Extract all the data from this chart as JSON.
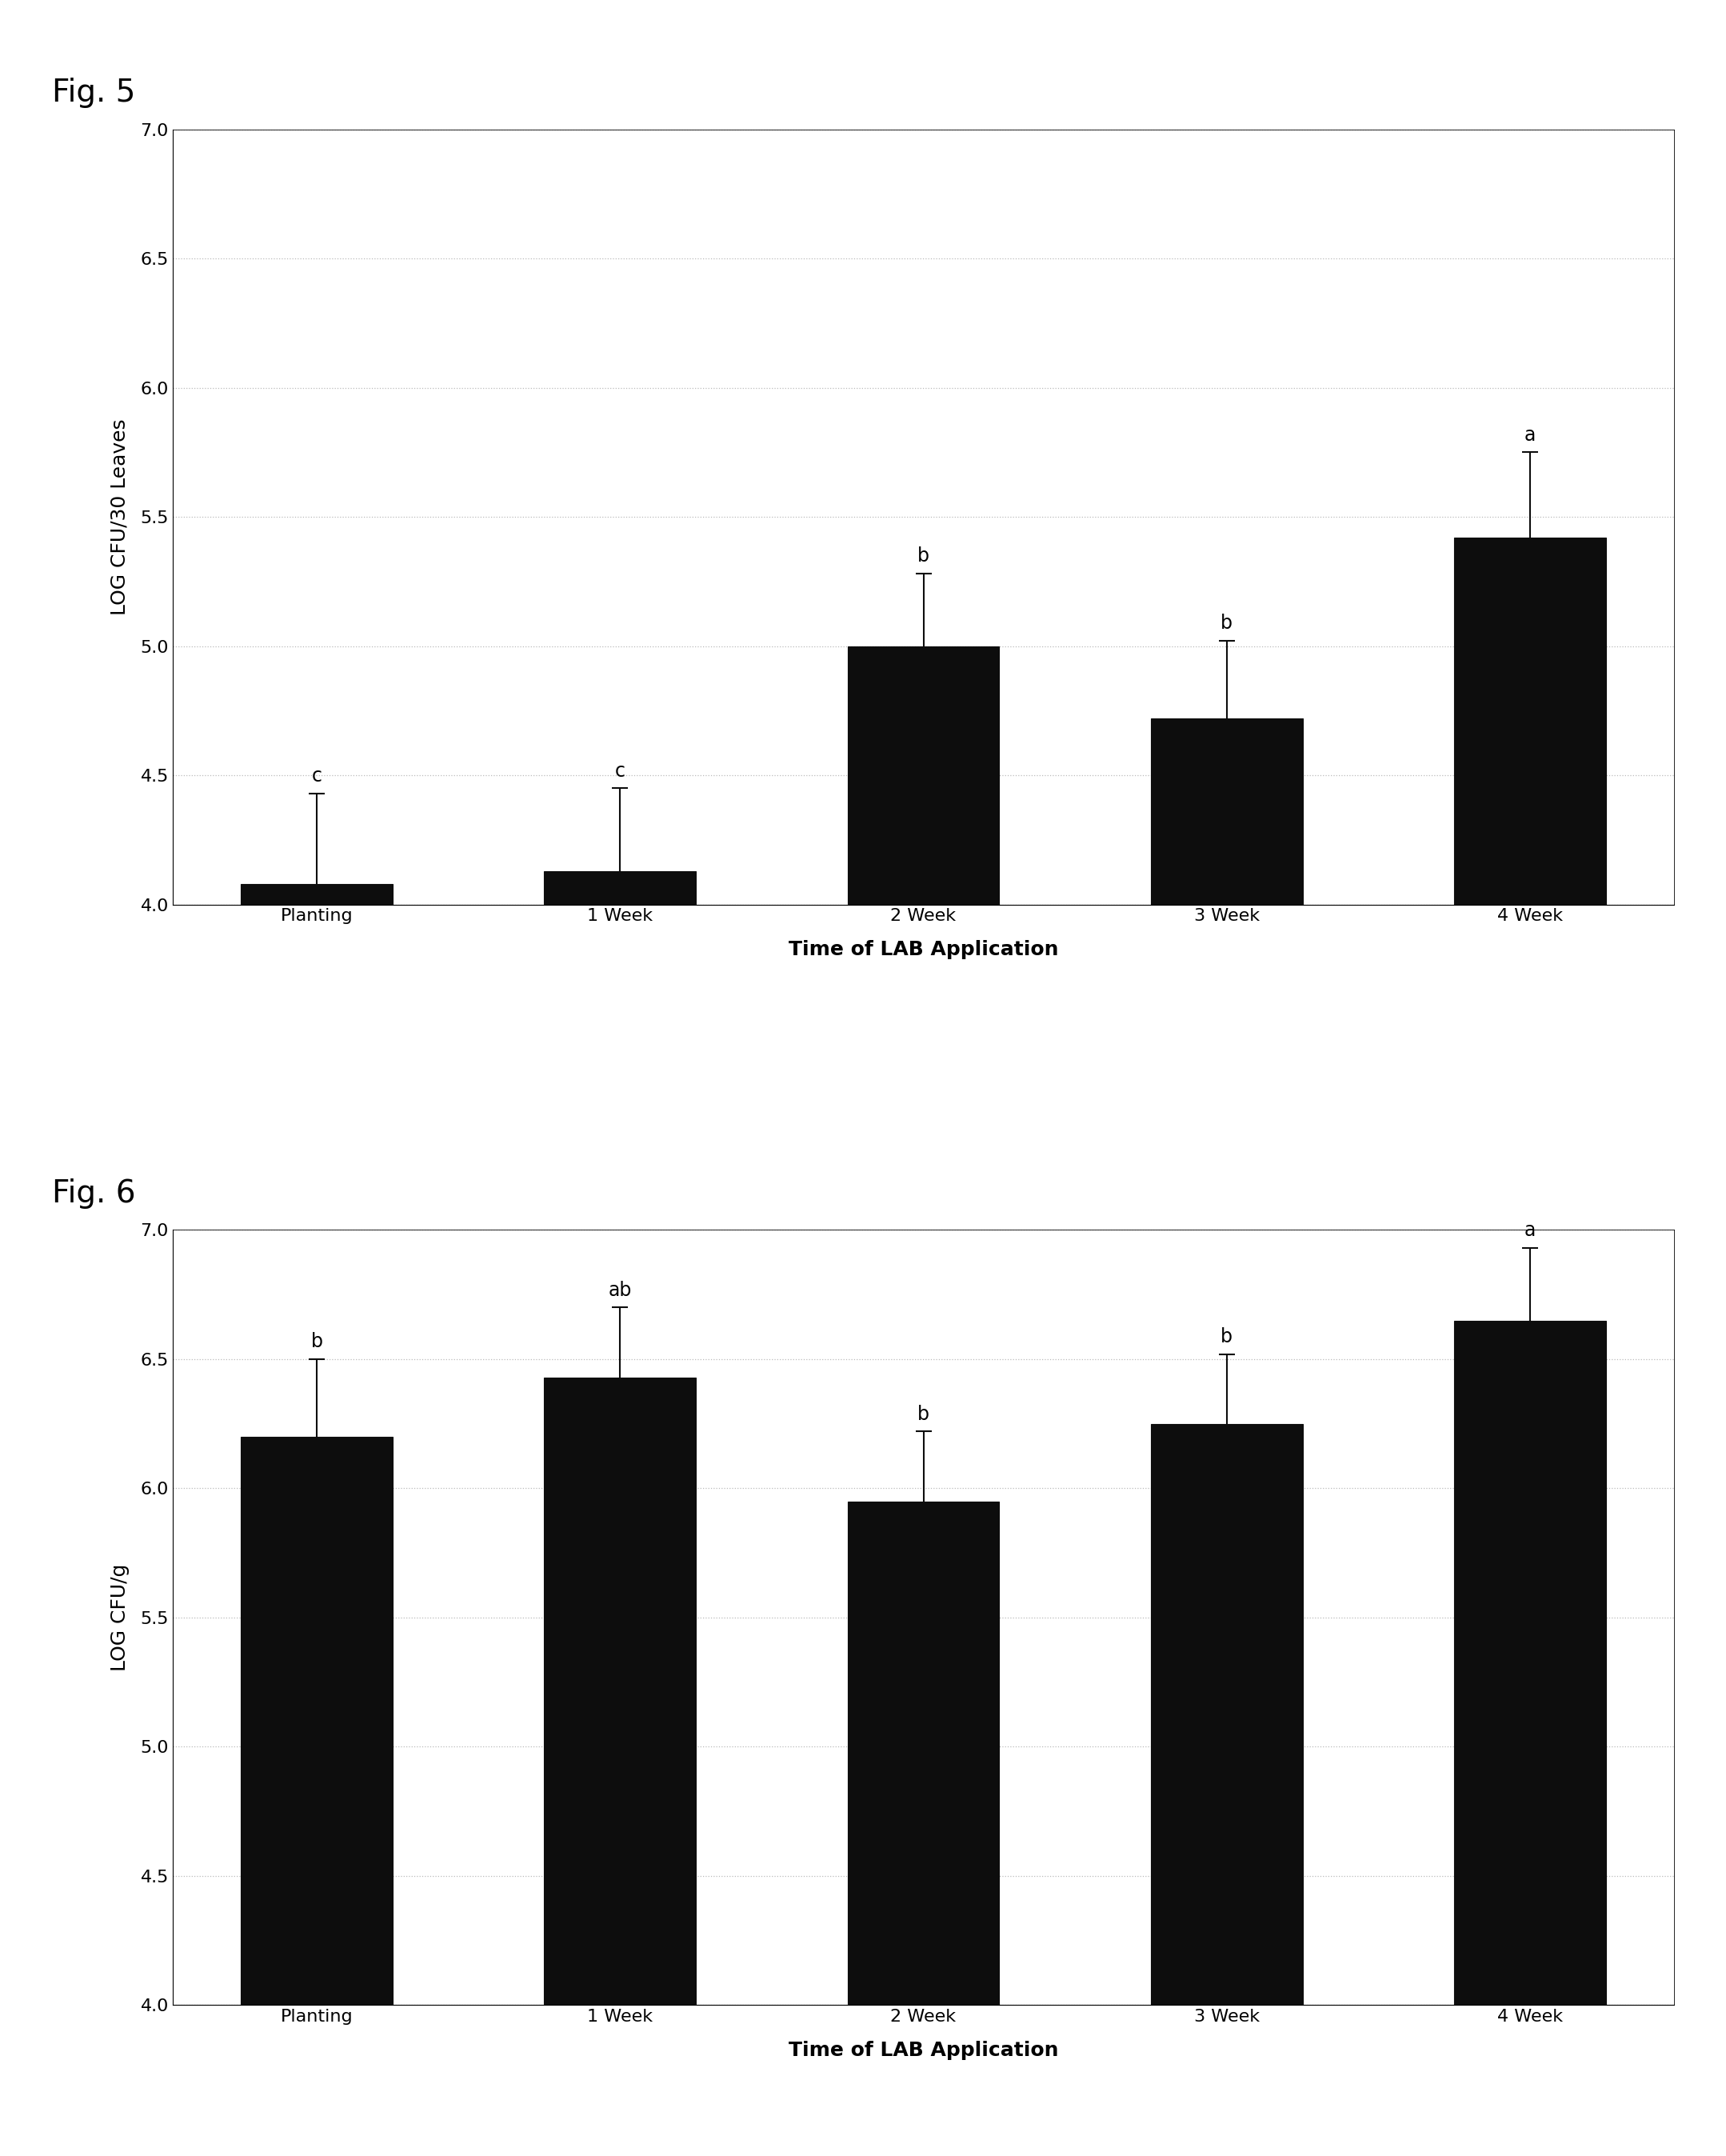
{
  "fig5": {
    "title": "Fig. 5",
    "categories": [
      "Planting",
      "1 Week",
      "2 Week",
      "3 Week",
      "4 Week"
    ],
    "values": [
      4.08,
      4.13,
      5.0,
      4.72,
      5.42
    ],
    "errors": [
      0.35,
      0.32,
      0.28,
      0.3,
      0.33
    ],
    "letters": [
      "c",
      "c",
      "b",
      "b",
      "a"
    ],
    "ylabel": "LOG CFU/30 Leaves",
    "xlabel": "Time of LAB Application",
    "ylim": [
      4.0,
      7.0
    ],
    "yticks": [
      4.0,
      4.5,
      5.0,
      5.5,
      6.0,
      6.5,
      7.0
    ]
  },
  "fig6": {
    "title": "Fig. 6",
    "categories": [
      "Planting",
      "1 Week",
      "2 Week",
      "3 Week",
      "4 Week"
    ],
    "values": [
      6.2,
      6.43,
      5.95,
      6.25,
      6.65
    ],
    "errors": [
      0.3,
      0.27,
      0.27,
      0.27,
      0.28
    ],
    "letters": [
      "b",
      "ab",
      "b",
      "b",
      "a"
    ],
    "ylabel": "LOG CFU/g",
    "xlabel": "Time of LAB Application",
    "ylim": [
      4.0,
      7.0
    ],
    "yticks": [
      4.0,
      4.5,
      5.0,
      5.5,
      6.0,
      6.5,
      7.0
    ]
  },
  "bar_color": "#0d0d0d",
  "bar_width": 0.5,
  "bar_edgecolor": "#0d0d0d",
  "error_color": "#0d0d0d",
  "error_linewidth": 1.5,
  "error_capsize": 7,
  "error_capthick": 1.5,
  "background_color": "#ffffff",
  "grid_color": "#bbbbbb",
  "grid_linestyle": ":",
  "fig_label_fontsize": 28,
  "axis_label_fontsize": 18,
  "tick_label_fontsize": 16,
  "letter_fontsize": 17
}
